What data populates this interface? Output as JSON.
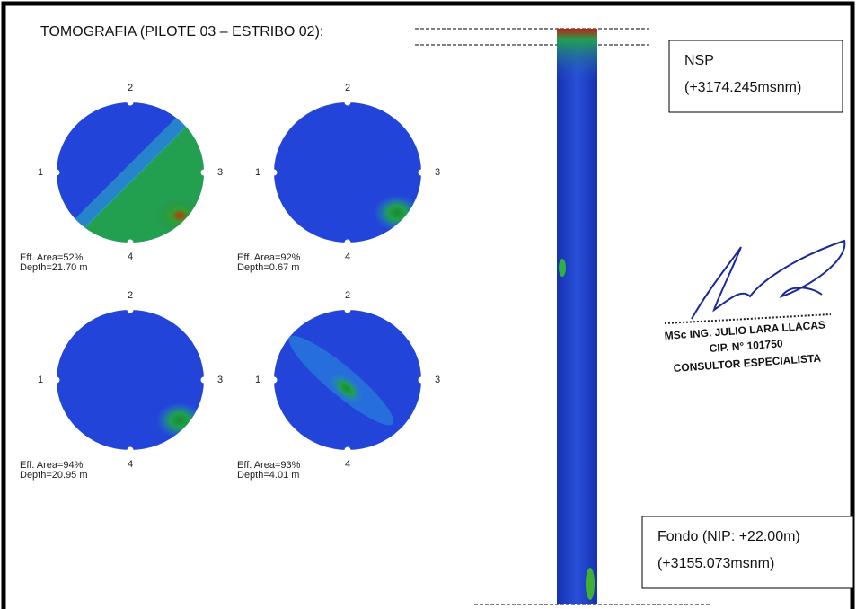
{
  "title": "TOMOGRAFIA (PILOTE 03 – ESTRIBO 02):",
  "tomograms": [
    {
      "labels": [
        "1",
        "2",
        "3",
        "4"
      ],
      "eff_area": "Eff. Area=52%",
      "depth": "Depth=21.70 m"
    },
    {
      "labels": [
        "1",
        "2",
        "3",
        "4"
      ],
      "eff_area": "Eff. Area=92%",
      "depth": "Depth=0.67 m"
    },
    {
      "labels": [
        "1",
        "2",
        "3",
        "4"
      ],
      "eff_area": "Eff. Area=94%",
      "depth": "Depth=20.95 m"
    },
    {
      "labels": [
        "1",
        "2",
        "3",
        "4"
      ],
      "eff_area": "Eff. Area=93%",
      "depth": "Depth=4.01 m"
    }
  ],
  "top_box": {
    "label": "NSP",
    "elevation": "(+3174.245msnm)"
  },
  "bottom_box": {
    "label": "Fondo (NIP: +22.00m)",
    "elevation": "(+3155.073msnm)"
  },
  "signature": {
    "name": "MSc ING. JULIO LARA LLACAS",
    "registration": "CIP. N° 101750",
    "role": "CONSULTOR ESPECIALISTA"
  }
}
